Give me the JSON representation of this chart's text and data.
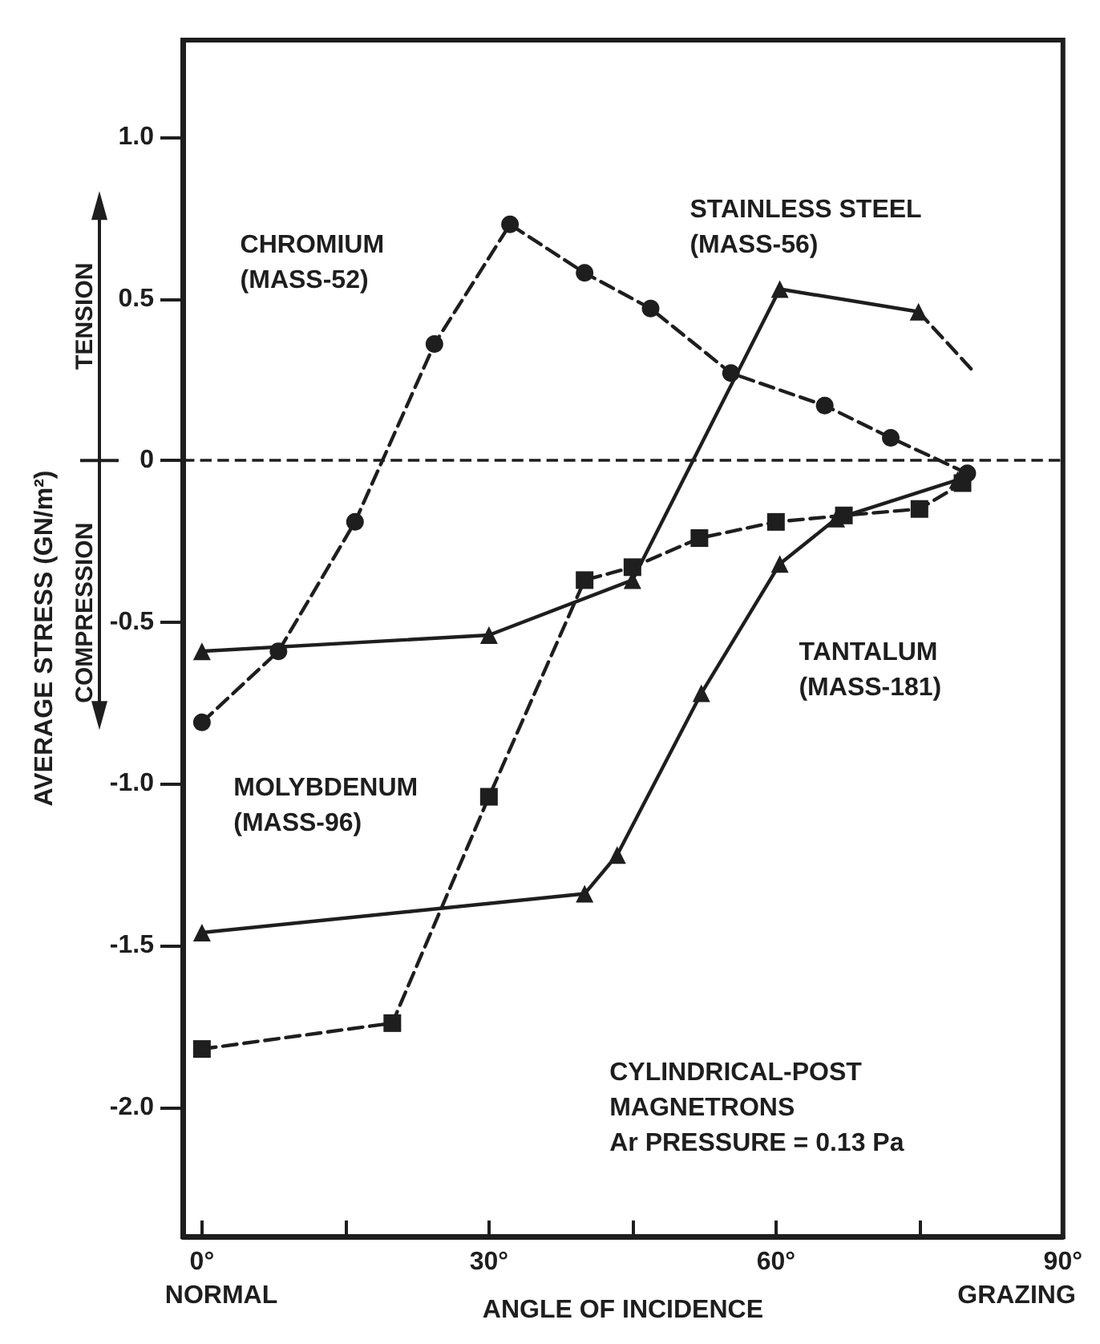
{
  "chart_data": {
    "type": "line",
    "xlabel": "ANGLE OF INCIDENCE",
    "ylabel": "AVERAGE STRESS (GN/m²)",
    "xlim": [
      -2,
      90
    ],
    "xticks": [
      {
        "value": 0,
        "label": "0°"
      },
      {
        "value": 15,
        "label": null
      },
      {
        "value": 30,
        "label": "30°"
      },
      {
        "value": 45,
        "label": null
      },
      {
        "value": 60,
        "label": "60°"
      },
      {
        "value": 75,
        "label": null
      },
      {
        "value": 90,
        "label": "90°"
      }
    ],
    "ylim": [
      -2.4,
      1.3
    ],
    "yticks": [
      {
        "value": -2,
        "label": "-2.0"
      },
      -1.5,
      {
        "value": -1,
        "label": "-1.0"
      },
      -0.5,
      0,
      0.5,
      {
        "value": 1,
        "label": "1.0"
      }
    ],
    "grid": false,
    "series": [
      {
        "color": "#1e1e1e",
        "marker": "circle",
        "line_style": "dashed",
        "x": [
          0,
          8,
          16,
          24.3,
          32.2,
          40,
          46.9,
          55.3,
          65.1,
          72,
          80
        ],
        "values": [
          -0.81,
          -0.59,
          -0.19,
          0.36,
          0.73,
          0.58,
          0.47,
          0.27,
          0.17,
          0.07,
          -0.04
        ]
      },
      {
        "color": "#1e1e1e",
        "marker": "triangle",
        "line_style": "solid",
        "x": [
          0,
          30,
          45,
          60.4,
          74.9
        ],
        "values": [
          -0.59,
          -0.54,
          -0.37,
          0.53,
          0.46
        ]
      },
      {
        "color": "#1e1e1e",
        "marker": "none",
        "line_style": "dashed",
        "x": [
          74.9,
          80.5
        ],
        "values": [
          0.46,
          0.28
        ]
      },
      {
        "color": "#1e1e1e",
        "marker": "square",
        "line_style": "dashed",
        "x": [
          0,
          19.9,
          30,
          40,
          45,
          52,
          60,
          67.1,
          75,
          79.5
        ],
        "values": [
          -1.82,
          -1.74,
          -1.04,
          -0.37,
          -0.33,
          -0.24,
          -0.19,
          -0.17,
          -0.15,
          -0.07
        ]
      },
      {
        "color": "#1e1e1e",
        "marker": "triangle",
        "line_style": "solid",
        "x": [
          0,
          40,
          43.4,
          52.2,
          60.4,
          66.3,
          79
        ],
        "values": [
          -1.46,
          -1.34,
          -1.22,
          -0.72,
          -0.32,
          -0.18,
          -0.06
        ]
      }
    ],
    "ref_lines": [
      {
        "axis": "y",
        "value": 0,
        "color": "#1e1e1e",
        "line_style": "dashed"
      }
    ],
    "annotations": [
      "CHROMIUM\n(MASS-52)",
      "STAINLESS STEEL\n(MASS-56)",
      "TANTALUM\n(MASS-181)",
      "MOLYBDENUM\n(MASS-96)",
      "CYLINDRICAL-POST\nMAGNETRONS\nAr PRESSURE = 0.13 Pa",
      "TENSION",
      "COMPRESSION",
      "NORMAL",
      "GRAZING"
    ]
  }
}
